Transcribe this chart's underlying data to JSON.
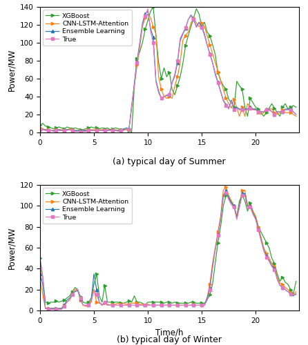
{
  "summer": {
    "xgboost": [
      8,
      10,
      7,
      6,
      5,
      4,
      5,
      6,
      5,
      4,
      6,
      5,
      4,
      5,
      4,
      3,
      3,
      4,
      5,
      6,
      5,
      5,
      4,
      5,
      4,
      5,
      3,
      4,
      5,
      4,
      3,
      4,
      3,
      2,
      0,
      52,
      82,
      90,
      100,
      115,
      125,
      135,
      140,
      108,
      78,
      60,
      72,
      62,
      67,
      48,
      42,
      52,
      62,
      77,
      97,
      108,
      118,
      128,
      138,
      132,
      118,
      123,
      112,
      108,
      98,
      87,
      67,
      58,
      52,
      48,
      37,
      33,
      28,
      57,
      52,
      48,
      28,
      18,
      38,
      33,
      28,
      26,
      22,
      18,
      22,
      27,
      32,
      27,
      22,
      18,
      28,
      32,
      26,
      28,
      30,
      28
    ],
    "cnn_lstm": [
      5,
      4,
      3,
      3,
      2,
      2,
      3,
      3,
      3,
      2,
      3,
      4,
      3,
      2,
      2,
      2,
      3,
      2,
      3,
      3,
      3,
      3,
      3,
      3,
      3,
      3,
      3,
      3,
      3,
      2,
      3,
      3,
      3,
      3,
      30,
      52,
      75,
      95,
      118,
      128,
      132,
      128,
      118,
      110,
      62,
      48,
      40,
      38,
      40,
      38,
      52,
      62,
      78,
      103,
      108,
      112,
      122,
      128,
      122,
      118,
      122,
      118,
      108,
      98,
      88,
      78,
      68,
      58,
      48,
      38,
      32,
      27,
      37,
      27,
      18,
      28,
      18,
      32,
      28,
      26,
      26,
      22,
      20,
      22,
      25,
      27,
      26,
      22,
      20,
      22,
      25,
      22,
      22,
      22,
      20,
      18
    ],
    "ensemble": [
      4,
      3,
      3,
      2,
      2,
      2,
      2,
      3,
      2,
      2,
      3,
      3,
      2,
      2,
      2,
      2,
      2,
      2,
      2,
      2,
      2,
      2,
      2,
      2,
      3,
      2,
      3,
      3,
      2,
      2,
      3,
      3,
      5,
      4,
      28,
      55,
      80,
      100,
      122,
      132,
      135,
      116,
      106,
      58,
      46,
      38,
      40,
      41,
      42,
      55,
      63,
      78,
      102,
      110,
      116,
      126,
      131,
      126,
      118,
      123,
      118,
      110,
      98,
      88,
      78,
      66,
      56,
      46,
      36,
      31,
      27,
      36,
      26,
      28,
      26,
      26,
      26,
      26,
      28,
      26,
      26,
      23,
      23,
      23,
      26,
      26,
      23,
      20,
      23,
      23,
      23,
      26,
      26,
      26,
      23,
      20
    ],
    "true": [
      3,
      3,
      2,
      2,
      2,
      1,
      2,
      2,
      2,
      2,
      2,
      3,
      2,
      1,
      1,
      1,
      1,
      1,
      2,
      2,
      2,
      2,
      2,
      2,
      2,
      2,
      2,
      2,
      2,
      1,
      2,
      2,
      4,
      3,
      30,
      52,
      78,
      98,
      120,
      130,
      138,
      113,
      100,
      56,
      44,
      38,
      40,
      42,
      42,
      56,
      65,
      80,
      105,
      111,
      117,
      126,
      130,
      126,
      117,
      122,
      117,
      108,
      97,
      87,
      77,
      64,
      55,
      45,
      35,
      30,
      26,
      35,
      25,
      27,
      25,
      25,
      25,
      25,
      27,
      25,
      25,
      23,
      23,
      23,
      25,
      25,
      23,
      20,
      23,
      23,
      23,
      25,
      25,
      25,
      23,
      20
    ]
  },
  "winter": {
    "xgboost": [
      50,
      32,
      8,
      7,
      8,
      8,
      9,
      8,
      9,
      10,
      12,
      14,
      18,
      22,
      20,
      13,
      8,
      7,
      8,
      12,
      25,
      35,
      14,
      8,
      24,
      8,
      8,
      8,
      8,
      8,
      7,
      7,
      8,
      9,
      8,
      14,
      8,
      8,
      7,
      5,
      8,
      8,
      8,
      8,
      8,
      8,
      7,
      8,
      8,
      7,
      8,
      7,
      7,
      7,
      7,
      7,
      8,
      8,
      7,
      7,
      7,
      7,
      10,
      15,
      25,
      45,
      65,
      80,
      100,
      110,
      108,
      103,
      100,
      90,
      105,
      110,
      105,
      95,
      103,
      95,
      90,
      80,
      75,
      70,
      65,
      60,
      50,
      45,
      35,
      28,
      32,
      27,
      25,
      20,
      16,
      28
    ],
    "cnn_lstm": [
      30,
      15,
      2,
      2,
      2,
      2,
      2,
      2,
      2,
      5,
      8,
      10,
      15,
      20,
      20,
      10,
      5,
      4,
      5,
      8,
      20,
      8,
      7,
      6,
      7,
      6,
      5,
      6,
      6,
      7,
      6,
      7,
      6,
      6,
      7,
      7,
      7,
      6,
      6,
      5,
      6,
      5,
      5,
      5,
      5,
      5,
      5,
      5,
      5,
      5,
      5,
      5,
      5,
      5,
      5,
      5,
      5,
      6,
      5,
      5,
      5,
      5,
      12,
      25,
      45,
      60,
      75,
      90,
      115,
      118,
      110,
      105,
      100,
      90,
      100,
      115,
      115,
      100,
      100,
      95,
      90,
      80,
      70,
      60,
      55,
      50,
      45,
      42,
      32,
      26,
      25,
      22,
      20,
      17,
      15,
      18
    ],
    "ensemble": [
      35,
      25,
      2,
      2,
      2,
      2,
      2,
      2,
      2,
      5,
      10,
      12,
      16,
      18,
      19,
      11,
      5,
      5,
      5,
      10,
      35,
      20,
      8,
      5,
      8,
      5,
      5,
      5,
      5,
      5,
      5,
      5,
      5,
      5,
      5,
      5,
      5,
      5,
      5,
      5,
      5,
      5,
      5,
      5,
      5,
      5,
      5,
      5,
      5,
      5,
      5,
      5,
      5,
      5,
      5,
      5,
      5,
      5,
      5,
      5,
      5,
      5,
      12,
      22,
      42,
      58,
      73,
      88,
      110,
      115,
      108,
      103,
      100,
      88,
      100,
      112,
      112,
      100,
      100,
      93,
      88,
      78,
      68,
      58,
      52,
      48,
      43,
      40,
      30,
      24,
      22,
      20,
      18,
      16,
      14,
      16
    ],
    "true": [
      40,
      33,
      2,
      1,
      1,
      1,
      1,
      1,
      1,
      4,
      8,
      11,
      15,
      19,
      20,
      12,
      5,
      5,
      5,
      10,
      20,
      15,
      8,
      5,
      8,
      5,
      5,
      5,
      5,
      5,
      5,
      5,
      5,
      5,
      5,
      5,
      5,
      5,
      5,
      5,
      5,
      5,
      5,
      5,
      5,
      5,
      5,
      5,
      5,
      5,
      5,
      5,
      5,
      5,
      5,
      5,
      5,
      5,
      5,
      5,
      5,
      5,
      10,
      20,
      40,
      58,
      72,
      87,
      108,
      113,
      106,
      101,
      99,
      87,
      99,
      110,
      110,
      98,
      99,
      92,
      87,
      77,
      67,
      57,
      51,
      47,
      42,
      39,
      30,
      24,
      22,
      20,
      18,
      16,
      15,
      15
    ]
  },
  "colors": {
    "xgboost": "#2ca02c",
    "cnn_lstm": "#ff7f0e",
    "ensemble": "#1f77b4",
    "true": "#e377c2"
  },
  "markers": {
    "xgboost": ">",
    "cnn_lstm": ">",
    "ensemble": "^",
    "true": "s"
  },
  "ylim_summer": [
    0,
    140
  ],
  "ylim_winter": [
    0,
    120
  ],
  "yticks_summer": [
    0,
    20,
    40,
    60,
    80,
    100,
    120,
    140
  ],
  "yticks_winter": [
    0,
    20,
    40,
    60,
    80,
    100,
    120
  ],
  "xticks_summer": [
    0,
    5,
    10,
    15,
    20
  ],
  "xticks_winter": [
    0,
    5,
    10,
    15,
    20
  ],
  "xlabel_summer": "",
  "xlabel_winter": "Time/h",
  "ylabel": "Power/MW",
  "title_summer": "(a) typical day of Summer",
  "title_winter": "(b) typical day of Winter",
  "legend_labels": [
    "XGBoost",
    "CNN-LSTM-Attention",
    "Ensemble Learning",
    "True"
  ],
  "n_points": 96,
  "x_max": 24
}
